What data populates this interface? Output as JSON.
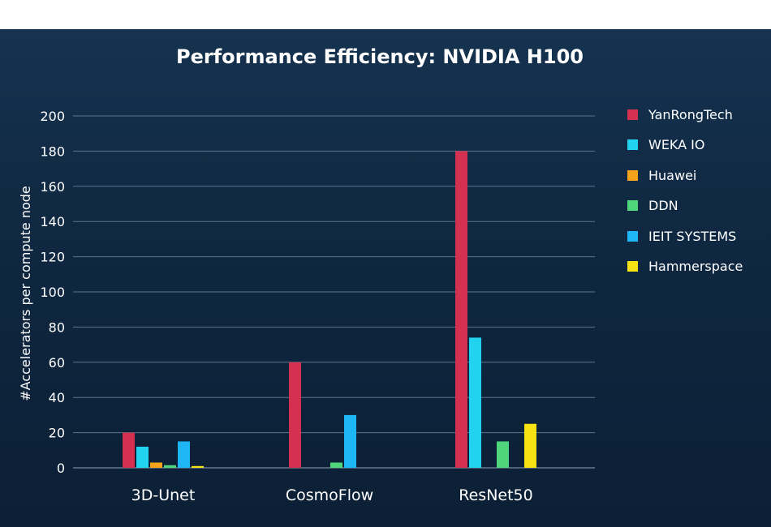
{
  "chart_data": {
    "type": "bar",
    "title": "Performance Efficiency: NVIDIA H100",
    "ylabel": "#Accelerators per compute node",
    "xlabel": "",
    "ylim": [
      0,
      200
    ],
    "yticks": [
      0,
      20,
      40,
      60,
      80,
      100,
      120,
      140,
      160,
      180,
      200
    ],
    "categories": [
      "3D-Unet",
      "CosmoFlow",
      "ResNet50"
    ],
    "series": [
      {
        "name": "YanRongTech",
        "color": "#d4304f",
        "values": [
          20,
          60,
          180
        ]
      },
      {
        "name": "WEKA IO",
        "color": "#22d3f0",
        "values": [
          12,
          null,
          74
        ]
      },
      {
        "name": "Huawei",
        "color": "#f5a31a",
        "values": [
          3,
          null,
          null
        ]
      },
      {
        "name": "DDN",
        "color": "#4fd67c",
        "values": [
          1.5,
          3,
          15
        ]
      },
      {
        "name": "IEIT SYSTEMS",
        "color": "#1eb6f5",
        "values": [
          15,
          30,
          null
        ]
      },
      {
        "name": "Hammerspace",
        "color": "#f7e214",
        "values": [
          1,
          null,
          25
        ]
      }
    ],
    "legend_position": "right",
    "grid": true
  }
}
